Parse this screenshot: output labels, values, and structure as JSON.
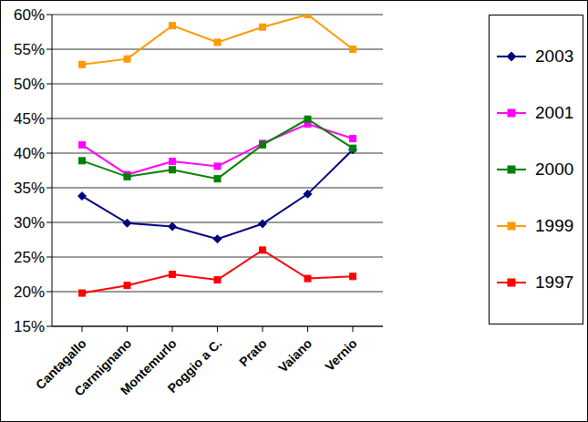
{
  "chart_data": {
    "type": "line",
    "categories": [
      "Cantagallo",
      "Carmignano",
      "Montemurlo",
      "Poggio a C.",
      "Prato",
      "Vaiano",
      "Vernio"
    ],
    "series": [
      {
        "name": "2003",
        "color": "#000080",
        "marker": "diamond",
        "values": [
          33.8,
          29.9,
          29.4,
          27.6,
          29.8,
          34.1,
          40.5
        ]
      },
      {
        "name": "2001",
        "color": "#FF00FF",
        "marker": "square",
        "values": [
          41.2,
          36.9,
          38.8,
          38.1,
          41.4,
          44.2,
          42.1
        ]
      },
      {
        "name": "2000",
        "color": "#008000",
        "marker": "square",
        "values": [
          38.9,
          36.6,
          37.6,
          36.3,
          41.2,
          44.9,
          40.7
        ]
      },
      {
        "name": "1999",
        "color": "#FF9900",
        "marker": "square",
        "values": [
          52.8,
          53.6,
          58.4,
          56.0,
          58.2,
          60.0,
          55.0
        ]
      },
      {
        "name": "1997",
        "color": "#FF0000",
        "marker": "square",
        "values": [
          19.8,
          20.9,
          22.5,
          21.7,
          26.0,
          21.9,
          22.2
        ]
      }
    ],
    "ylim": [
      15,
      60
    ],
    "yticks": [
      {
        "value": 15,
        "label": "15%"
      },
      {
        "value": 20,
        "label": "20%"
      },
      {
        "value": 25,
        "label": "25%"
      },
      {
        "value": 30,
        "label": "30%"
      },
      {
        "value": 35,
        "label": "35%"
      },
      {
        "value": 40,
        "label": "40%"
      },
      {
        "value": 45,
        "label": "45%"
      },
      {
        "value": 50,
        "label": "50%"
      },
      {
        "value": 55,
        "label": "55%"
      },
      {
        "value": 60,
        "label": "60%"
      }
    ],
    "grid": true,
    "legend": "right"
  }
}
